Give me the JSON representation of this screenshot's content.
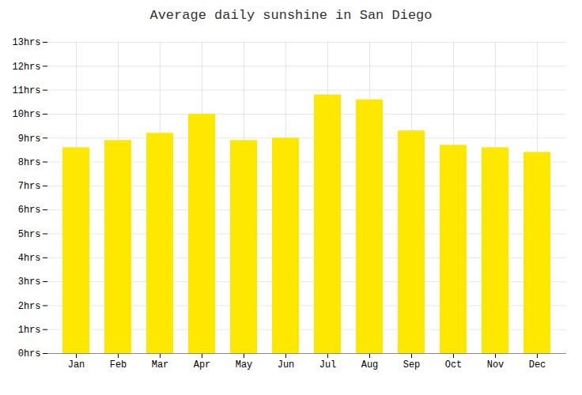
{
  "chart_data": {
    "type": "bar",
    "title": "Average daily sunshine in San Diego",
    "categories": [
      "Jan",
      "Feb",
      "Mar",
      "Apr",
      "May",
      "Jun",
      "Jul",
      "Aug",
      "Sep",
      "Oct",
      "Nov",
      "Dec"
    ],
    "values": [
      8.6,
      8.9,
      9.2,
      10.0,
      8.9,
      9.0,
      10.8,
      10.6,
      9.3,
      8.7,
      8.6,
      8.4
    ],
    "color": "#FFE800",
    "ylim": [
      0,
      13
    ],
    "yticks": [
      {
        "value": 0,
        "label": "0hrs"
      },
      {
        "value": 1,
        "label": "1hrs"
      },
      {
        "value": 2,
        "label": "2hrs"
      },
      {
        "value": 3,
        "label": "3hrs"
      },
      {
        "value": 4,
        "label": "4hrs"
      },
      {
        "value": 5,
        "label": "5hrs"
      },
      {
        "value": 6,
        "label": "6hrs"
      },
      {
        "value": 7,
        "label": "7hrs"
      },
      {
        "value": 8,
        "label": "8hrs"
      },
      {
        "value": 9,
        "label": "9hrs"
      },
      {
        "value": 10,
        "label": "10hrs"
      },
      {
        "value": 11,
        "label": "11hrs"
      },
      {
        "value": 12,
        "label": "12hrs"
      },
      {
        "value": 13,
        "label": "13hrs"
      }
    ],
    "grid": true
  }
}
